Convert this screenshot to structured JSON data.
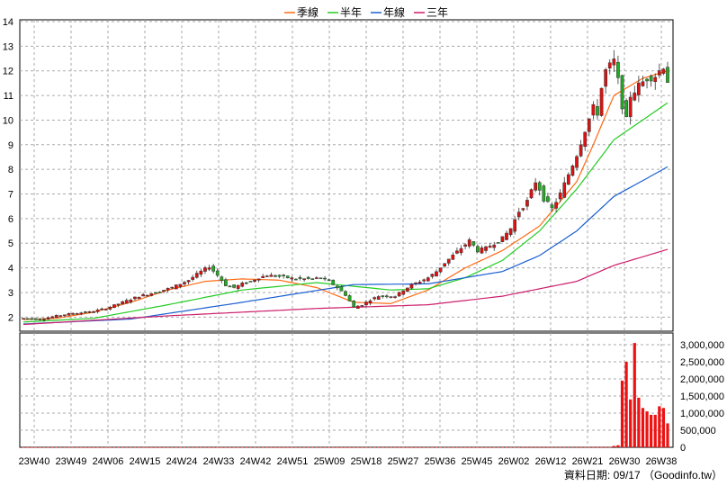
{
  "chart_data": {
    "type": "candlestick-with-volume",
    "legend": [
      {
        "label": "季線",
        "color": "#ff6a13"
      },
      {
        "label": "半年",
        "color": "#22cc22"
      },
      {
        "label": "年線",
        "color": "#1a5fd0"
      },
      {
        "label": "三年",
        "color": "#cc1e6a"
      }
    ],
    "price_axis": {
      "min": 1.5,
      "max": 14,
      "ticks": [
        2,
        3,
        4,
        5,
        6,
        7,
        8,
        9,
        10,
        11,
        12,
        13,
        14
      ]
    },
    "volume_axis": {
      "min": 0,
      "max": 3000000,
      "ticks": [
        "0",
        "500,000",
        "1,000,000",
        "1,500,000",
        "2,000,000",
        "2,500,000",
        "3,000,000"
      ],
      "tick_values": [
        0,
        500000,
        1000000,
        1500000,
        2000000,
        2500000,
        3000000
      ]
    },
    "x_labels": [
      "23W40",
      "23W49",
      "24W06",
      "24W15",
      "24W24",
      "24W33",
      "24W42",
      "24W51",
      "25W09",
      "25W18",
      "25W27",
      "25W36",
      "25W45",
      "26W02",
      "26W12",
      "26W21",
      "26W30",
      "26W38"
    ],
    "ma": {
      "季線": [
        [
          0,
          1.9
        ],
        [
          8,
          1.95
        ],
        [
          17,
          2.2
        ],
        [
          26,
          2.6
        ],
        [
          35,
          3.1
        ],
        [
          44,
          3.45
        ],
        [
          53,
          3.55
        ],
        [
          62,
          3.5
        ],
        [
          71,
          3.2
        ],
        [
          80,
          2.6
        ],
        [
          89,
          2.55
        ],
        [
          98,
          3.1
        ],
        [
          107,
          4.0
        ],
        [
          116,
          4.7
        ],
        [
          125,
          5.7
        ],
        [
          134,
          7.5
        ],
        [
          138,
          9.0
        ],
        [
          143,
          11.0
        ],
        [
          150,
          11.7
        ],
        [
          156,
          12.0
        ]
      ],
      "半年": [
        [
          0,
          1.8
        ],
        [
          17,
          1.95
        ],
        [
          35,
          2.5
        ],
        [
          53,
          3.1
        ],
        [
          71,
          3.4
        ],
        [
          89,
          3.1
        ],
        [
          98,
          3.15
        ],
        [
          107,
          3.6
        ],
        [
          116,
          4.3
        ],
        [
          125,
          5.5
        ],
        [
          134,
          7.2
        ],
        [
          143,
          9.2
        ],
        [
          156,
          10.7
        ]
      ],
      "年線": [
        [
          0,
          1.72
        ],
        [
          26,
          1.92
        ],
        [
          53,
          2.6
        ],
        [
          80,
          3.32
        ],
        [
          98,
          3.35
        ],
        [
          116,
          3.85
        ],
        [
          125,
          4.5
        ],
        [
          134,
          5.5
        ],
        [
          143,
          6.9
        ],
        [
          156,
          8.1
        ]
      ],
      "三年": [
        [
          0,
          1.7
        ],
        [
          35,
          2.05
        ],
        [
          71,
          2.35
        ],
        [
          98,
          2.5
        ],
        [
          116,
          2.85
        ],
        [
          134,
          3.45
        ],
        [
          143,
          4.1
        ],
        [
          156,
          4.75
        ]
      ]
    },
    "last_index": 156,
    "footer": "資料日期: 09/17 （Goodinfo.tw）"
  }
}
